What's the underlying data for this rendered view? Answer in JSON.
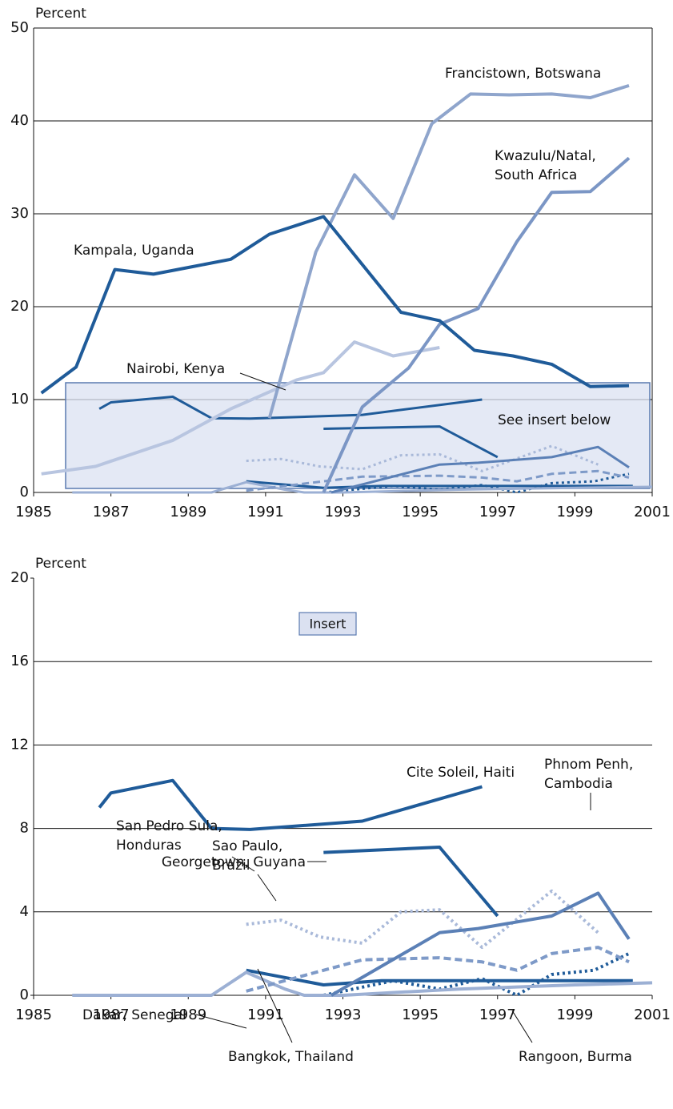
{
  "chart_data": [
    {
      "type": "line",
      "ylabel": "Percent",
      "note": "See insert below",
      "xlim": [
        1985,
        2001
      ],
      "xticks": [
        1985,
        1987,
        1989,
        1991,
        1993,
        1995,
        1997,
        1999,
        2001
      ],
      "ylim": [
        0,
        50
      ],
      "yticks": [
        0,
        10,
        20,
        30,
        40,
        50
      ],
      "grid": true,
      "frame": true,
      "series": [
        {
          "name": "Kampala, Uganda",
          "color": "#1f5b99",
          "x": [
            1985.2,
            1986.1,
            1987.1,
            1988.1,
            1989.1,
            1990.1,
            1991.1,
            1992.5,
            1994.5,
            1995.5,
            1996.4,
            1997.4,
            1998.4,
            1999.4,
            2000.4
          ],
          "values": [
            10.7,
            13.5,
            24.0,
            23.5,
            24.3,
            25.1,
            27.8,
            29.7,
            19.4,
            18.5,
            15.3,
            14.7,
            13.8,
            11.4,
            11.5
          ]
        },
        {
          "name": "Francistown, Botswana",
          "color": "#8fa5cc",
          "x": [
            1991.1,
            1992.3,
            1993.3,
            1994.3,
            1995.3,
            1996.3,
            1997.3,
            1998.4,
            1999.4,
            2000.4
          ],
          "values": [
            8.0,
            25.9,
            34.2,
            29.5,
            39.7,
            42.9,
            42.8,
            42.9,
            42.5,
            43.8
          ]
        },
        {
          "name": "Kwazulu/Natal, South Africa",
          "color": "#7b96c5",
          "x": [
            1992.5,
            1993.5,
            1994.7,
            1995.5,
            1996.5,
            1997.5,
            1998.4,
            1999.4,
            2000.4
          ],
          "values": [
            0,
            9.2,
            13.4,
            18.1,
            19.8,
            27.0,
            32.3,
            32.4,
            36.0
          ]
        },
        {
          "name": "Nairobi, Kenya",
          "color": "#b8c5e0",
          "x": [
            1985.2,
            1986.6,
            1988.6,
            1990.1,
            1991.8,
            1992.5,
            1993.3,
            1994.3,
            1995.5
          ],
          "values": [
            2.0,
            2.8,
            5.6,
            9.0,
            12.1,
            12.9,
            16.2,
            14.7,
            15.6
          ]
        }
      ]
    },
    {
      "type": "line",
      "ylabel": "Percent",
      "inset_title": "Insert",
      "xlim": [
        1985,
        2001
      ],
      "xticks": [
        1985,
        1987,
        1989,
        1991,
        1993,
        1995,
        1997,
        1999,
        2001
      ],
      "ylim": [
        0,
        20
      ],
      "yticks": [
        0,
        4,
        8,
        12,
        16,
        20
      ],
      "grid": true,
      "frame": false,
      "series": [
        {
          "name": "Cite Soleil, Haiti",
          "color": "#1f5b99",
          "x": [
            1986.7,
            1987.0,
            1988.6,
            1989.6,
            1990.6,
            1993.5,
            1996.6
          ],
          "values": [
            9.0,
            9.7,
            10.3,
            8.0,
            7.95,
            8.35,
            10.0
          ]
        },
        {
          "name": "Georgetown, Guyana",
          "color": "#1f5b99",
          "x": [
            1992.5,
            1995.5,
            1997.0
          ],
          "values": [
            6.85,
            7.1,
            3.8
          ]
        },
        {
          "name": "Phnom Penh, Cambodia",
          "color": "#5b80b6",
          "x": [
            1992.7,
            1995.5,
            1996.5,
            1998.4,
            1999.6,
            2000.4
          ],
          "values": [
            0,
            3.0,
            3.2,
            3.8,
            4.9,
            2.7
          ]
        },
        {
          "name": "San Pedro Sula, Honduras",
          "color": "#a9b9d9",
          "dash": "dotted",
          "x": [
            1990.5,
            1991.4,
            1992.4,
            1993.5,
            1994.5,
            1995.5,
            1996.6,
            1998.4,
            1999.6
          ],
          "values": [
            3.4,
            3.6,
            2.8,
            2.5,
            4.0,
            4.1,
            2.3,
            5.0,
            3.0
          ]
        },
        {
          "name": "Sao Paulo, Brazil",
          "color": "#7e9ac8",
          "dash": "dashed",
          "x": [
            1990.5,
            1993.5,
            1995.5,
            1996.6,
            1997.5,
            1998.4,
            1999.6,
            2000.4
          ],
          "values": [
            0.2,
            1.7,
            1.8,
            1.6,
            1.2,
            2.0,
            2.3,
            1.6
          ]
        },
        {
          "name": "Dakar, Senegal",
          "color": "#9cb0d4",
          "x": [
            1986,
            1989.6,
            1990.5,
            1991.5,
            1992,
            1993,
            1996,
            1999,
            2001
          ],
          "values": [
            0,
            0,
            1.1,
            0.3,
            0,
            0,
            0.3,
            0.5,
            0.6
          ]
        },
        {
          "name": "Bangkok, Thailand",
          "color": "#1f5b99",
          "x": [
            1990.5,
            1992.5,
            1994,
            1996,
            2000.5
          ],
          "values": [
            1.2,
            0.5,
            0.7,
            0.7,
            0.7
          ]
        },
        {
          "name": "Rangoon, Burma",
          "color": "#1f5b99",
          "dash": "dotted",
          "x": [
            1992.5,
            1994.3,
            1995.5,
            1996.6,
            1997.5,
            1998.4,
            1999.5,
            2000.4
          ],
          "values": [
            0,
            0.7,
            0.3,
            0.8,
            0,
            1.0,
            1.2,
            2.0
          ]
        }
      ]
    }
  ]
}
